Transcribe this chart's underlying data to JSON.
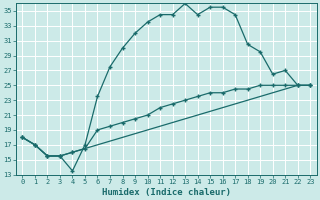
{
  "xlabel": "Humidex (Indice chaleur)",
  "ylabel": "",
  "bg_color": "#cceae8",
  "grid_color": "#ffffff",
  "line_color": "#1a6b6b",
  "xlim": [
    -0.5,
    23.5
  ],
  "ylim": [
    13,
    36
  ],
  "xticks": [
    0,
    1,
    2,
    3,
    4,
    5,
    6,
    7,
    8,
    9,
    10,
    11,
    12,
    13,
    14,
    15,
    16,
    17,
    18,
    19,
    20,
    21,
    22,
    23
  ],
  "yticks": [
    13,
    15,
    17,
    19,
    21,
    23,
    25,
    27,
    29,
    31,
    33,
    35
  ],
  "curve1_x": [
    0,
    1,
    2,
    3,
    4,
    5,
    6,
    7,
    8,
    9,
    10,
    11,
    12,
    13,
    14,
    15,
    16,
    17,
    18,
    19,
    20,
    21,
    22,
    23
  ],
  "curve1_y": [
    18,
    17,
    15.5,
    15.5,
    13.5,
    17,
    23.5,
    27.5,
    30,
    32,
    33.5,
    34.5,
    34.5,
    36,
    34.5,
    35.5,
    35.5,
    34.5,
    30.5,
    29.5,
    26.5,
    27,
    25,
    25
  ],
  "curve2_x": [
    0,
    1,
    2,
    3,
    4,
    5,
    6,
    7,
    8,
    9,
    10,
    11,
    12,
    13,
    14,
    15,
    16,
    17,
    18,
    19,
    20,
    21,
    22,
    23
  ],
  "curve2_y": [
    18,
    17,
    15.5,
    15.5,
    16,
    16.5,
    19,
    19.5,
    20,
    20.5,
    21,
    22,
    22.5,
    23,
    23.5,
    24,
    24,
    24.5,
    24.5,
    25,
    25,
    25,
    25,
    25
  ],
  "curve3_x": [
    0,
    1,
    2,
    3,
    4,
    22,
    23
  ],
  "curve3_y": [
    18,
    17,
    15.5,
    15.5,
    16,
    25,
    25
  ]
}
